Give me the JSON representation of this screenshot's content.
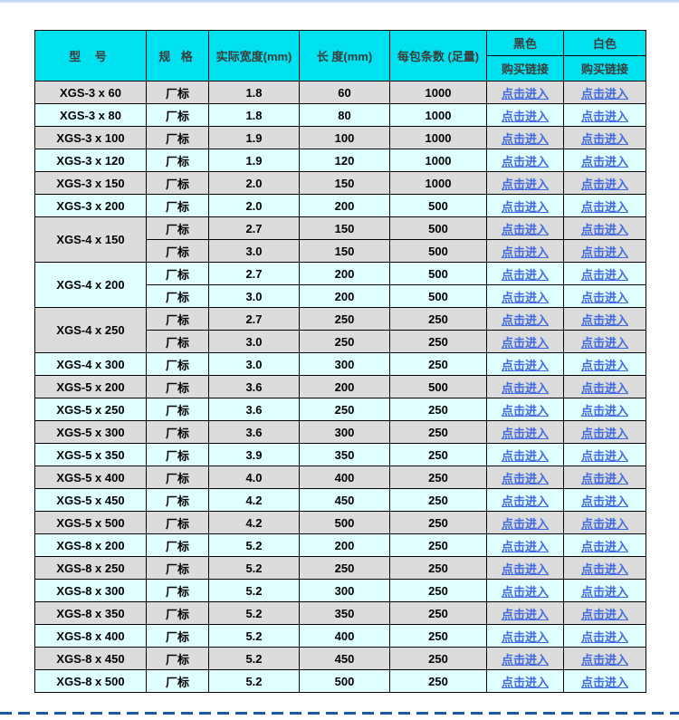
{
  "page": {
    "top_strip_color": "#bccff0",
    "bottom_divider_color": "#1c57a8",
    "background_color": "#ffffff"
  },
  "colors": {
    "header_bg": "#00e1f0",
    "row_gray": "#dcdcdc",
    "row_cyan": "#e0ffff",
    "link_blue": "#4169e1",
    "border": "#000000"
  },
  "table": {
    "header": {
      "model": "型 号",
      "spec": "规 格",
      "width": "实际宽度(mm)",
      "length": "长 度(mm)",
      "qty": "每包条数 (足量)",
      "black": "黑色",
      "white": "白色",
      "buy_link": "购买链接"
    },
    "link_label": "点击进入",
    "groups": [
      {
        "model": "XGS-3 x 60",
        "rows": [
          {
            "spec": "厂标",
            "width": "1.8",
            "length": "60",
            "qty": "1000"
          }
        ]
      },
      {
        "model": "XGS-3 x 80",
        "rows": [
          {
            "spec": "厂标",
            "width": "1.8",
            "length": "80",
            "qty": "1000"
          }
        ]
      },
      {
        "model": "XGS-3 x 100",
        "rows": [
          {
            "spec": "厂标",
            "width": "1.9",
            "length": "100",
            "qty": "1000"
          }
        ]
      },
      {
        "model": "XGS-3 x 120",
        "rows": [
          {
            "spec": "厂标",
            "width": "1.9",
            "length": "120",
            "qty": "1000"
          }
        ]
      },
      {
        "model": "XGS-3 x 150",
        "rows": [
          {
            "spec": "厂标",
            "width": "2.0",
            "length": "150",
            "qty": "1000"
          }
        ]
      },
      {
        "model": "XGS-3 x 200",
        "rows": [
          {
            "spec": "厂标",
            "width": "2.0",
            "length": "200",
            "qty": "500"
          }
        ]
      },
      {
        "model": "XGS-4 x 150",
        "rows": [
          {
            "spec": "厂标",
            "width": "2.7",
            "length": "150",
            "qty": "500"
          },
          {
            "spec": "厂标",
            "width": "3.0",
            "length": "150",
            "qty": "500"
          }
        ]
      },
      {
        "model": "XGS-4 x 200",
        "rows": [
          {
            "spec": "厂标",
            "width": "2.7",
            "length": "200",
            "qty": "500"
          },
          {
            "spec": "厂标",
            "width": "3.0",
            "length": "200",
            "qty": "500"
          }
        ]
      },
      {
        "model": "XGS-4 x 250",
        "rows": [
          {
            "spec": "厂标",
            "width": "2.7",
            "length": "250",
            "qty": "250"
          },
          {
            "spec": "厂标",
            "width": "3.0",
            "length": "250",
            "qty": "250"
          }
        ]
      },
      {
        "model": "XGS-4 x 300",
        "rows": [
          {
            "spec": "厂标",
            "width": "3.0",
            "length": "300",
            "qty": "250"
          }
        ]
      },
      {
        "model": "XGS-5 x 200",
        "rows": [
          {
            "spec": "厂标",
            "width": "3.6",
            "length": "200",
            "qty": "500"
          }
        ]
      },
      {
        "model": "XGS-5 x 250",
        "rows": [
          {
            "spec": "厂标",
            "width": "3.6",
            "length": "250",
            "qty": "250"
          }
        ]
      },
      {
        "model": "XGS-5 x 300",
        "rows": [
          {
            "spec": "厂标",
            "width": "3.6",
            "length": "300",
            "qty": "250"
          }
        ]
      },
      {
        "model": "XGS-5 x 350",
        "rows": [
          {
            "spec": "厂标",
            "width": "3.9",
            "length": "350",
            "qty": "250"
          }
        ]
      },
      {
        "model": "XGS-5 x 400",
        "rows": [
          {
            "spec": "厂标",
            "width": "4.0",
            "length": "400",
            "qty": "250"
          }
        ]
      },
      {
        "model": "XGS-5 x 450",
        "rows": [
          {
            "spec": "厂标",
            "width": "4.2",
            "length": "450",
            "qty": "250"
          }
        ]
      },
      {
        "model": "XGS-5 x 500",
        "rows": [
          {
            "spec": "厂标",
            "width": "4.2",
            "length": "500",
            "qty": "250"
          }
        ]
      },
      {
        "model": "XGS-8 x 200",
        "rows": [
          {
            "spec": "厂标",
            "width": "5.2",
            "length": "200",
            "qty": "250"
          }
        ]
      },
      {
        "model": "XGS-8 x 250",
        "rows": [
          {
            "spec": "厂标",
            "width": "5.2",
            "length": "250",
            "qty": "250"
          }
        ]
      },
      {
        "model": "XGS-8 x 300",
        "rows": [
          {
            "spec": "厂标",
            "width": "5.2",
            "length": "300",
            "qty": "250"
          }
        ]
      },
      {
        "model": "XGS-8 x 350",
        "rows": [
          {
            "spec": "厂标",
            "width": "5.2",
            "length": "350",
            "qty": "250"
          }
        ]
      },
      {
        "model": "XGS-8 x 400",
        "rows": [
          {
            "spec": "厂标",
            "width": "5.2",
            "length": "400",
            "qty": "250"
          }
        ]
      },
      {
        "model": "XGS-8 x 450",
        "rows": [
          {
            "spec": "厂标",
            "width": "5.2",
            "length": "450",
            "qty": "250"
          }
        ]
      },
      {
        "model": "XGS-8 x 500",
        "rows": [
          {
            "spec": "厂标",
            "width": "5.2",
            "length": "500",
            "qty": "250"
          }
        ]
      }
    ]
  }
}
